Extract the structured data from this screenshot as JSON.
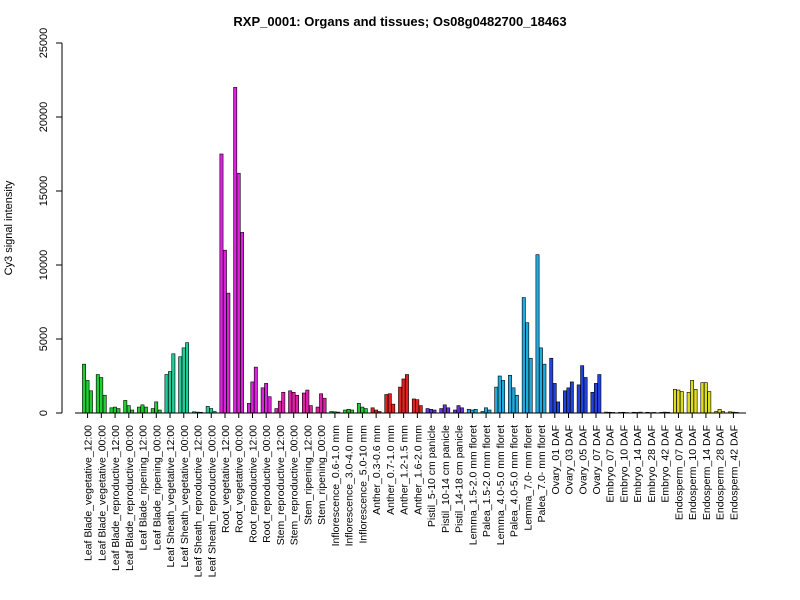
{
  "chart_data": {
    "type": "bar",
    "title": "RXP_0001: Organs and tissues; Os08g0482700_18463",
    "ylabel": "Cy3 signal intensity",
    "ylim": [
      0,
      25000
    ],
    "yticks": [
      0,
      5000,
      10000,
      15000,
      20000,
      25000
    ],
    "grid": false,
    "groups": [
      {
        "label": "Leaf Blade_vegetative_12:00",
        "color": "#22cc33",
        "values": [
          3300,
          2200,
          1500
        ]
      },
      {
        "label": "Leaf Blade_vegetative_00:00",
        "color": "#22cc33",
        "values": [
          2600,
          2400,
          1200
        ]
      },
      {
        "label": "Leaf Blade_reproductive_12:00",
        "color": "#22cc33",
        "values": [
          350,
          400,
          300
        ]
      },
      {
        "label": "Leaf Blade_reproductive_00:00",
        "color": "#22cc33",
        "values": [
          850,
          500,
          200
        ]
      },
      {
        "label": "Leaf Blade_ripening_12:00",
        "color": "#22cc33",
        "values": [
          400,
          550,
          400
        ]
      },
      {
        "label": "Leaf Blade_ripening_00:00",
        "color": "#22cc33",
        "values": [
          300,
          750,
          200
        ]
      },
      {
        "label": "Leaf Sheath_vegetative_12:00",
        "color": "#22cc99",
        "values": [
          2600,
          2800,
          4000
        ]
      },
      {
        "label": "Leaf Sheath_vegetative_00:00",
        "color": "#22cc99",
        "values": [
          3800,
          4400,
          4750
        ]
      },
      {
        "label": "Leaf Sheath_reproductive_12:00",
        "color": "#22cc99",
        "values": [
          80,
          60,
          50
        ]
      },
      {
        "label": "Leaf Sheath_reproductive_00:00",
        "color": "#22cc99",
        "values": [
          450,
          300,
          100
        ]
      },
      {
        "label": "Root_vegetative_12:00",
        "color": "#dd22dd",
        "values": [
          17500,
          11000,
          8100
        ]
      },
      {
        "label": "Root_vegetative_00:00",
        "color": "#dd22dd",
        "values": [
          22000,
          16200,
          12200
        ]
      },
      {
        "label": "Root_reproductive_12:00",
        "color": "#dd22dd",
        "values": [
          650,
          2100,
          3100
        ]
      },
      {
        "label": "Root_reproductive_00:00",
        "color": "#dd22dd",
        "values": [
          1700,
          2000,
          1100
        ]
      },
      {
        "label": "Stem_reproductive_12:00",
        "color": "#dd22aa",
        "values": [
          300,
          800,
          1400
        ]
      },
      {
        "label": "Stem_reproductive_00:00",
        "color": "#dd22aa",
        "values": [
          1500,
          1400,
          1200
        ]
      },
      {
        "label": "Stem_ripening_12:00",
        "color": "#dd22aa",
        "values": [
          1350,
          1550,
          500
        ]
      },
      {
        "label": "Stem_ripening_00:00",
        "color": "#dd22aa",
        "values": [
          400,
          1300,
          1000
        ]
      },
      {
        "label": "Inflorescence_0.6-1.0 mm",
        "color": "#22cc33",
        "values": [
          100,
          80,
          60
        ]
      },
      {
        "label": "Inflorescence_3.0-4.0 mm",
        "color": "#22cc33",
        "values": [
          200,
          250,
          200
        ]
      },
      {
        "label": "Inflorescence_5.0-10 mm",
        "color": "#22cc33",
        "values": [
          650,
          400,
          300
        ]
      },
      {
        "label": "Anther_0.3-0.6 mm",
        "color": "#dd2222",
        "values": [
          350,
          200,
          100
        ]
      },
      {
        "label": "Anther_0.7-1.0 mm",
        "color": "#dd2222",
        "values": [
          1250,
          1300,
          600
        ]
      },
      {
        "label": "Anther_1.2-1.5 mm",
        "color": "#dd2222",
        "values": [
          1750,
          2300,
          2600
        ]
      },
      {
        "label": "Anther_1.6-2.0 mm",
        "color": "#dd2222",
        "values": [
          950,
          900,
          500
        ]
      },
      {
        "label": "Pistil_5-10 cm panicle",
        "color": "#6633dd",
        "values": [
          300,
          250,
          200
        ]
      },
      {
        "label": "Pistil_10-14 cm panicle",
        "color": "#6633dd",
        "values": [
          300,
          550,
          350
        ]
      },
      {
        "label": "Pistil_14-18 cm panicle",
        "color": "#6633dd",
        "values": [
          200,
          500,
          350
        ]
      },
      {
        "label": "Lemma_1.5-2.0 mm floret",
        "color": "#22aadd",
        "values": [
          250,
          200,
          250
        ]
      },
      {
        "label": "Palea_1.5-2.0 mm floret",
        "color": "#22aadd",
        "values": [
          100,
          350,
          200
        ]
      },
      {
        "label": "Lemma_4.0-5.0 mm floret",
        "color": "#22aadd",
        "values": [
          1750,
          2500,
          2200
        ]
      },
      {
        "label": "Palea_4.0-5.0 mm floret",
        "color": "#22aadd",
        "values": [
          2550,
          1700,
          1200
        ]
      },
      {
        "label": "Lemma_7.0- mm floret",
        "color": "#22aadd",
        "values": [
          7800,
          6100,
          3700
        ]
      },
      {
        "label": "Palea_7.0- mm floret",
        "color": "#22aadd",
        "values": [
          10700,
          4400,
          3300
        ]
      },
      {
        "label": "Ovary_01 DAF",
        "color": "#2244dd",
        "values": [
          3700,
          2000,
          750
        ]
      },
      {
        "label": "Ovary_03 DAF",
        "color": "#2244dd",
        "values": [
          1500,
          1700,
          2100
        ]
      },
      {
        "label": "Ovary_05 DAF",
        "color": "#2244dd",
        "values": [
          1900,
          3200,
          2400
        ]
      },
      {
        "label": "Ovary_07 DAF",
        "color": "#2244dd",
        "values": [
          1400,
          2000,
          2600
        ]
      },
      {
        "label": "Embryo_07 DAF",
        "color": "#dddd22",
        "values": [
          60,
          50,
          40
        ]
      },
      {
        "label": "Embryo_10 DAF",
        "color": "#dddd22",
        "values": [
          40,
          50,
          30
        ]
      },
      {
        "label": "Embryo_14 DAF",
        "color": "#dddd22",
        "values": [
          50,
          40,
          60
        ]
      },
      {
        "label": "Embryo_28 DAF",
        "color": "#dddd22",
        "values": [
          50,
          30,
          40
        ]
      },
      {
        "label": "Embryo_42 DAF",
        "color": "#dddd22",
        "values": [
          40,
          60,
          50
        ]
      },
      {
        "label": "Endosperm_07 DAF",
        "color": "#dddd22",
        "values": [
          1600,
          1550,
          1450
        ]
      },
      {
        "label": "Endosperm_10 DAF",
        "color": "#dddd22",
        "values": [
          1400,
          2200,
          1600
        ]
      },
      {
        "label": "Endosperm_14 DAF",
        "color": "#dddd22",
        "values": [
          2050,
          2050,
          1450
        ]
      },
      {
        "label": "Endosperm_28 DAF",
        "color": "#dddd22",
        "values": [
          100,
          250,
          100
        ]
      },
      {
        "label": "Endosperm_42 DAF",
        "color": "#dddd22",
        "values": [
          80,
          60,
          40
        ]
      }
    ]
  }
}
